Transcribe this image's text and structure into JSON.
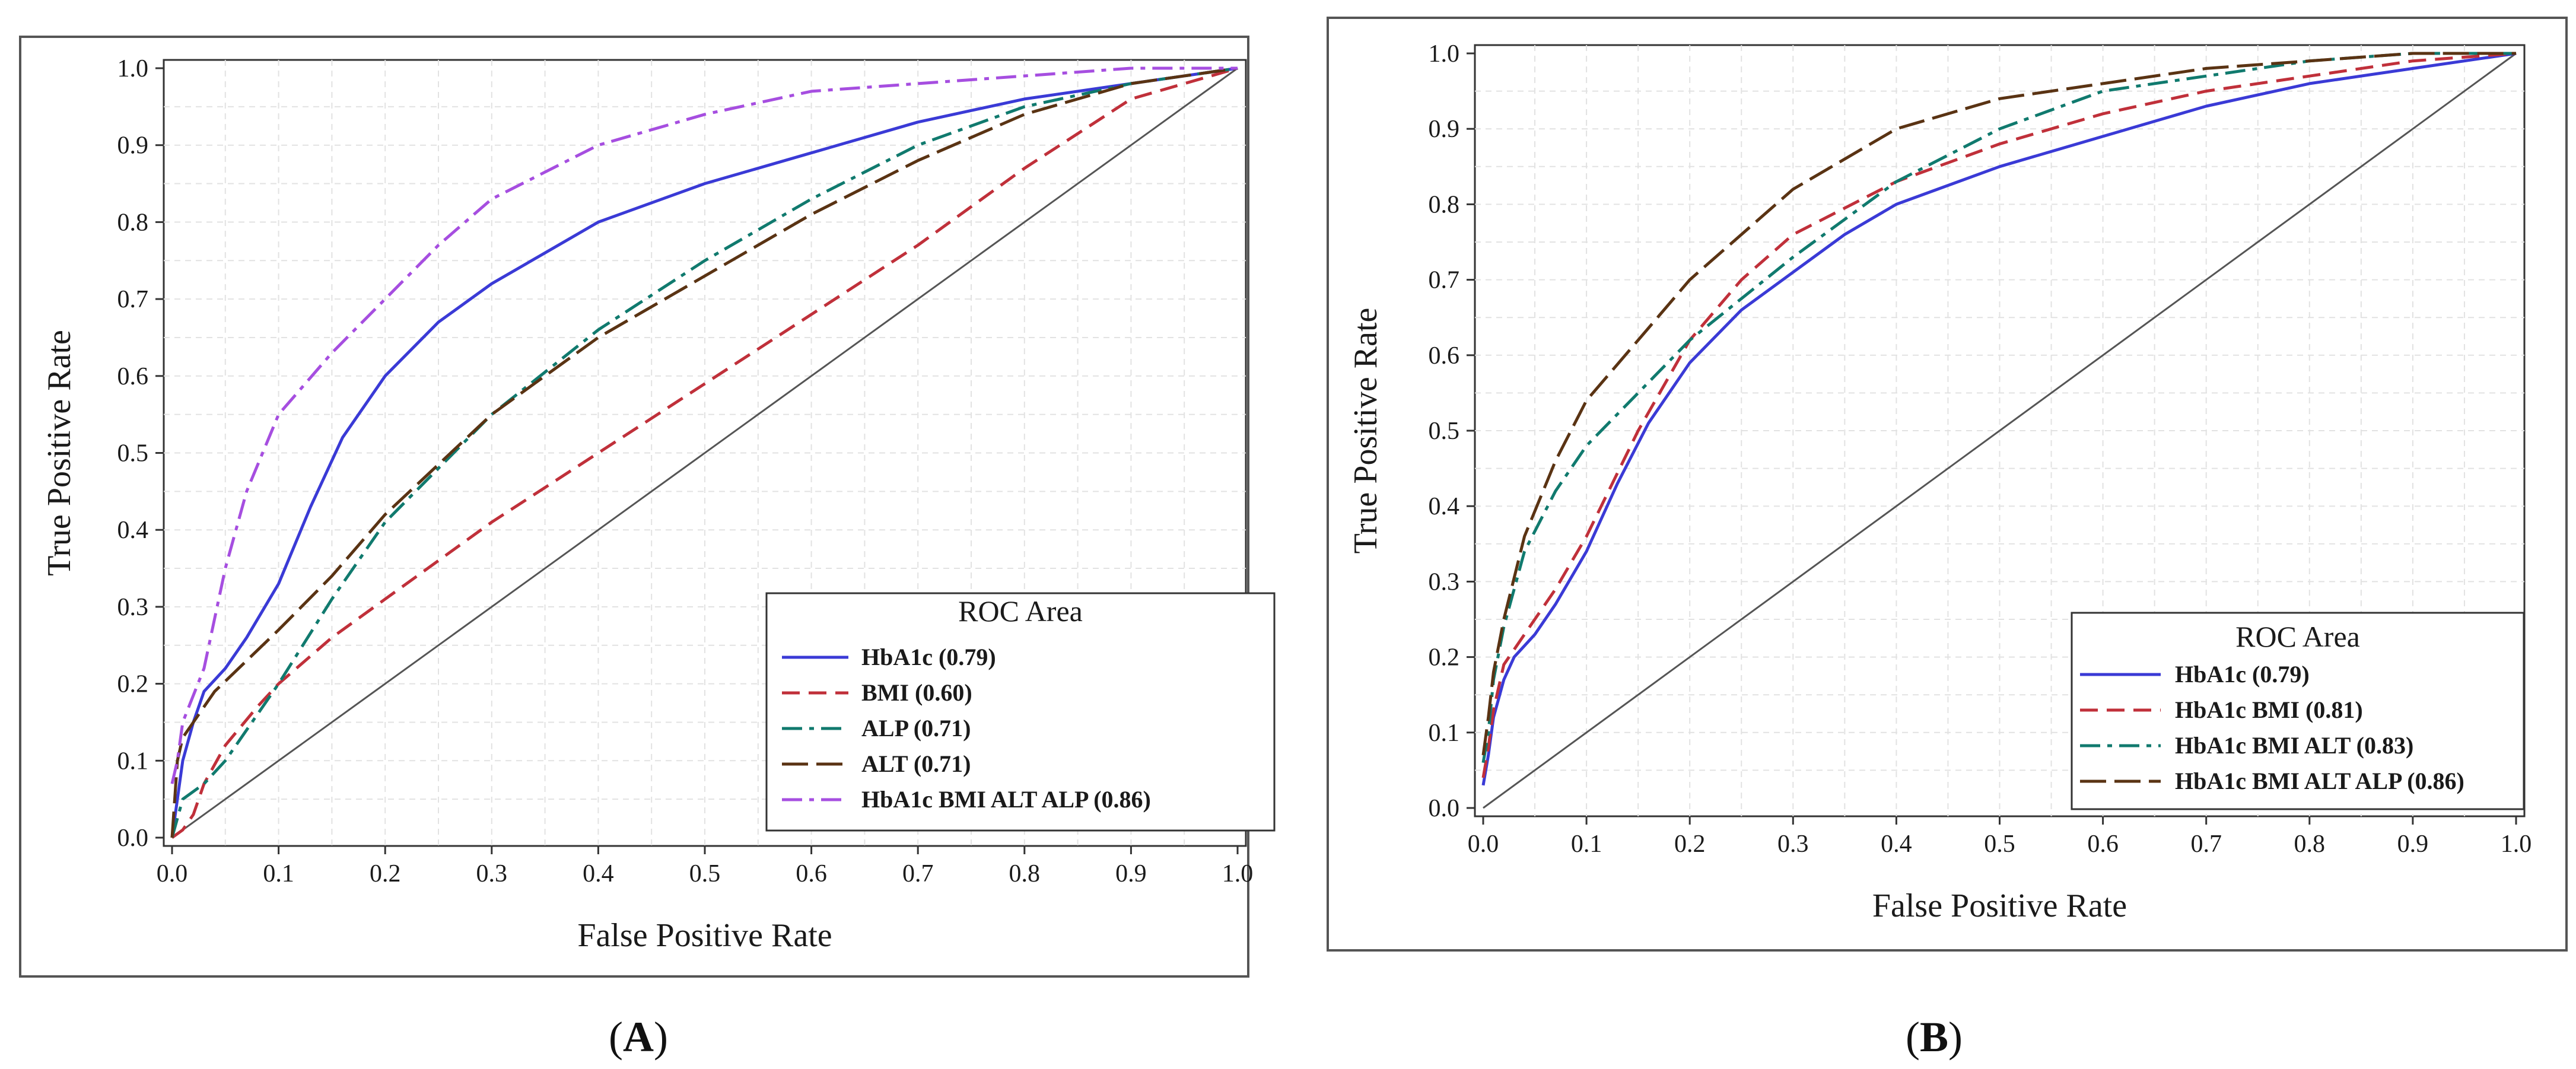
{
  "chart_data": [
    {
      "id": "A",
      "type": "line",
      "panel_label": "A",
      "xlabel": "False Positive Rate",
      "ylabel": "True Positive Rate",
      "xlim": [
        0,
        1
      ],
      "ylim": [
        0,
        1
      ],
      "xticks": [
        "0.0",
        "0.1",
        "0.2",
        "0.3",
        "0.4",
        "0.5",
        "0.6",
        "0.7",
        "0.8",
        "0.9",
        "1.0"
      ],
      "yticks": [
        "0.0",
        "0.1",
        "0.2",
        "0.3",
        "0.4",
        "0.5",
        "0.6",
        "0.7",
        "0.8",
        "0.9",
        "1.0"
      ],
      "grid": true,
      "legend_title": "ROC Area",
      "legend_position": "bottom-right",
      "reference_line": {
        "x": [
          0,
          1
        ],
        "y": [
          0,
          1
        ],
        "color": "#555555"
      },
      "series": [
        {
          "name": "HbA1c (0.79)",
          "color": "#3a3ad6",
          "dash": "solid",
          "x": [
            0,
            0.005,
            0.01,
            0.02,
            0.03,
            0.05,
            0.07,
            0.1,
            0.13,
            0.16,
            0.2,
            0.25,
            0.3,
            0.35,
            0.4,
            0.5,
            0.6,
            0.7,
            0.8,
            0.9,
            1.0
          ],
          "y": [
            0,
            0.05,
            0.1,
            0.15,
            0.19,
            0.22,
            0.26,
            0.33,
            0.43,
            0.52,
            0.6,
            0.67,
            0.72,
            0.76,
            0.8,
            0.85,
            0.89,
            0.93,
            0.96,
            0.98,
            1.0
          ]
        },
        {
          "name": "BMI (0.60)",
          "color": "#c0303a",
          "dash": "dashed",
          "x": [
            0,
            0.01,
            0.02,
            0.03,
            0.05,
            0.08,
            0.1,
            0.15,
            0.2,
            0.3,
            0.4,
            0.5,
            0.6,
            0.7,
            0.8,
            0.9,
            1.0
          ],
          "y": [
            0,
            0.01,
            0.03,
            0.07,
            0.12,
            0.17,
            0.2,
            0.26,
            0.31,
            0.41,
            0.5,
            0.59,
            0.68,
            0.77,
            0.87,
            0.96,
            1.0
          ]
        },
        {
          "name": "ALP (0.71)",
          "color": "#107a6e",
          "dash": "dashdot",
          "x": [
            0,
            0.01,
            0.03,
            0.05,
            0.08,
            0.1,
            0.15,
            0.2,
            0.3,
            0.4,
            0.5,
            0.6,
            0.7,
            0.8,
            0.9,
            1.0
          ],
          "y": [
            0,
            0.05,
            0.07,
            0.1,
            0.16,
            0.2,
            0.31,
            0.41,
            0.55,
            0.66,
            0.75,
            0.83,
            0.9,
            0.95,
            0.98,
            1.0
          ]
        },
        {
          "name": "ALT (0.71)",
          "color": "#5a3313",
          "dash": "longdash",
          "x": [
            0,
            0.005,
            0.01,
            0.02,
            0.04,
            0.07,
            0.1,
            0.15,
            0.2,
            0.3,
            0.4,
            0.5,
            0.6,
            0.7,
            0.8,
            0.9,
            1.0
          ],
          "y": [
            0,
            0.1,
            0.13,
            0.15,
            0.19,
            0.23,
            0.27,
            0.34,
            0.42,
            0.55,
            0.65,
            0.73,
            0.81,
            0.88,
            0.94,
            0.98,
            1.0
          ]
        },
        {
          "name": "HbA1c BMI ALT ALP (0.86)",
          "color": "#a64ee0",
          "dash": "dashdot",
          "x": [
            0,
            0.005,
            0.01,
            0.03,
            0.05,
            0.07,
            0.1,
            0.15,
            0.2,
            0.25,
            0.3,
            0.4,
            0.5,
            0.6,
            0.7,
            0.8,
            0.9,
            1.0
          ],
          "y": [
            0.07,
            0.1,
            0.15,
            0.22,
            0.35,
            0.45,
            0.55,
            0.63,
            0.7,
            0.77,
            0.83,
            0.9,
            0.94,
            0.97,
            0.98,
            0.99,
            1.0,
            1.0
          ]
        }
      ]
    },
    {
      "id": "B",
      "type": "line",
      "panel_label": "B",
      "xlabel": "False Positive Rate",
      "ylabel": "True Positive Rate",
      "xlim": [
        0,
        1
      ],
      "ylim": [
        0,
        1
      ],
      "xticks": [
        "0.0",
        "0.1",
        "0.2",
        "0.3",
        "0.4",
        "0.5",
        "0.6",
        "0.7",
        "0.8",
        "0.9",
        "1.0"
      ],
      "yticks": [
        "0.0",
        "0.1",
        "0.2",
        "0.3",
        "0.4",
        "0.5",
        "0.6",
        "0.7",
        "0.8",
        "0.9",
        "1.0"
      ],
      "grid": true,
      "legend_title": "ROC Area",
      "legend_position": "bottom-right",
      "reference_line": {
        "x": [
          0,
          1
        ],
        "y": [
          0,
          1
        ],
        "color": "#555555"
      },
      "series": [
        {
          "name": "HbA1c (0.79)",
          "color": "#3a3ad6",
          "dash": "solid",
          "x": [
            0,
            0.005,
            0.01,
            0.02,
            0.03,
            0.05,
            0.07,
            0.1,
            0.13,
            0.16,
            0.2,
            0.25,
            0.3,
            0.35,
            0.4,
            0.5,
            0.6,
            0.7,
            0.8,
            0.9,
            1.0
          ],
          "y": [
            0.03,
            0.07,
            0.12,
            0.17,
            0.2,
            0.23,
            0.27,
            0.34,
            0.43,
            0.51,
            0.59,
            0.66,
            0.71,
            0.76,
            0.8,
            0.85,
            0.89,
            0.93,
            0.96,
            0.98,
            1.0
          ]
        },
        {
          "name": "HbA1c BMI (0.81)",
          "color": "#c0303a",
          "dash": "dashed",
          "x": [
            0,
            0.005,
            0.01,
            0.02,
            0.04,
            0.07,
            0.1,
            0.15,
            0.2,
            0.25,
            0.3,
            0.4,
            0.5,
            0.6,
            0.7,
            0.8,
            0.9,
            1.0
          ],
          "y": [
            0.04,
            0.08,
            0.13,
            0.19,
            0.23,
            0.29,
            0.36,
            0.5,
            0.62,
            0.7,
            0.76,
            0.83,
            0.88,
            0.92,
            0.95,
            0.97,
            0.99,
            1.0
          ]
        },
        {
          "name": "HbA1c BMI ALT (0.83)",
          "color": "#107a6e",
          "dash": "dashdot",
          "x": [
            0,
            0.005,
            0.01,
            0.02,
            0.04,
            0.07,
            0.1,
            0.15,
            0.2,
            0.3,
            0.4,
            0.5,
            0.6,
            0.7,
            0.8,
            0.9,
            1.0
          ],
          "y": [
            0.06,
            0.1,
            0.17,
            0.24,
            0.34,
            0.42,
            0.48,
            0.55,
            0.62,
            0.73,
            0.83,
            0.9,
            0.95,
            0.97,
            0.99,
            1.0,
            1.0
          ]
        },
        {
          "name": "HbA1c BMI ALT ALP (0.86)",
          "color": "#5a3313",
          "dash": "longdash",
          "x": [
            0,
            0.005,
            0.01,
            0.02,
            0.04,
            0.07,
            0.1,
            0.15,
            0.2,
            0.3,
            0.4,
            0.5,
            0.6,
            0.7,
            0.8,
            0.9,
            1.0
          ],
          "y": [
            0.07,
            0.12,
            0.18,
            0.25,
            0.36,
            0.46,
            0.54,
            0.62,
            0.7,
            0.82,
            0.9,
            0.94,
            0.96,
            0.98,
            0.99,
            1.0,
            1.0
          ]
        }
      ]
    }
  ]
}
